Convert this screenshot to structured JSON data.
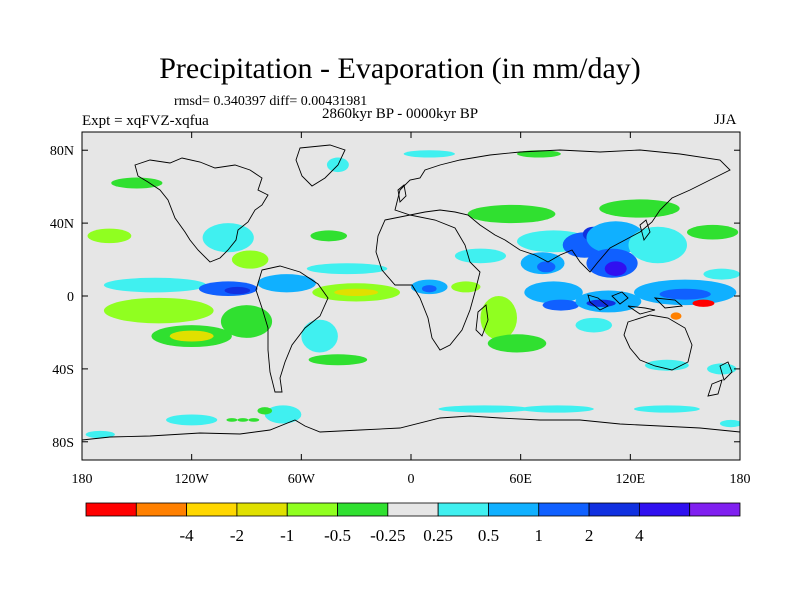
{
  "chart_data": {
    "type": "heatmap",
    "title": "Precipitation - Evaporation (in mm/day)",
    "stats_line": "rmsd= 0.340397 diff= 0.00431981",
    "time_label": "2860kyr BP - 0000kyr BP",
    "experiment_label": "Expt = xqFVZ-xqfua",
    "season": "JJA",
    "x_ticks": [
      {
        "lon": -180,
        "label": "180"
      },
      {
        "lon": -120,
        "label": "120W"
      },
      {
        "lon": -60,
        "label": "60W"
      },
      {
        "lon": 0,
        "label": "0"
      },
      {
        "lon": 60,
        "label": "60E"
      },
      {
        "lon": 120,
        "label": "120E"
      },
      {
        "lon": 180,
        "label": "180"
      }
    ],
    "y_ticks": [
      {
        "lat": 80,
        "label": "80N"
      },
      {
        "lat": 40,
        "label": "40N"
      },
      {
        "lat": 0,
        "label": "0"
      },
      {
        "lat": -40,
        "label": "40S"
      },
      {
        "lat": -80,
        "label": "80S"
      }
    ],
    "lon_range": [
      -180,
      180
    ],
    "lat_range": [
      -90,
      90
    ],
    "colorbar": {
      "colors": [
        "#ff0000",
        "#ff8000",
        "#ffd700",
        "#e0e000",
        "#90ff20",
        "#30e030",
        "#e6e6e6",
        "#40f0f0",
        "#10b0ff",
        "#1060ff",
        "#1030e0",
        "#3010f0",
        "#8020f0"
      ],
      "labels": [
        "-4",
        "-2",
        "-1",
        "-0.5",
        "-0.25",
        "0.25",
        "0.5",
        "1",
        "2",
        "4"
      ]
    },
    "anomaly_regions": [
      {
        "lon": -140,
        "lat": 6,
        "rx": 28,
        "ry": 4,
        "level": 1
      },
      {
        "lon": -100,
        "lat": 4,
        "rx": 16,
        "ry": 4,
        "level": 3
      },
      {
        "lon": -95,
        "lat": 3,
        "rx": 7,
        "ry": 2,
        "level": 4
      },
      {
        "lon": -138,
        "lat": -8,
        "rx": 30,
        "ry": 7,
        "level": -2
      },
      {
        "lon": -120,
        "lat": -22,
        "rx": 22,
        "ry": 6,
        "level": -1
      },
      {
        "lon": -120,
        "lat": -22,
        "rx": 12,
        "ry": 3,
        "level": -3
      },
      {
        "lon": -90,
        "lat": -14,
        "rx": 14,
        "ry": 9,
        "level": -1
      },
      {
        "lon": -165,
        "lat": 33,
        "rx": 12,
        "ry": 4,
        "level": -2
      },
      {
        "lon": -100,
        "lat": 32,
        "rx": 14,
        "ry": 8,
        "level": 1
      },
      {
        "lon": -88,
        "lat": 20,
        "rx": 10,
        "ry": 5,
        "level": -2
      },
      {
        "lon": -68,
        "lat": 7,
        "rx": 16,
        "ry": 5,
        "level": 2
      },
      {
        "lon": -30,
        "lat": 2,
        "rx": 24,
        "ry": 5,
        "level": -2
      },
      {
        "lon": -30,
        "lat": 2,
        "rx": 12,
        "ry": 2,
        "level": -3
      },
      {
        "lon": -35,
        "lat": 15,
        "rx": 22,
        "ry": 3,
        "level": 1
      },
      {
        "lon": -45,
        "lat": 33,
        "rx": 10,
        "ry": 3,
        "level": -1
      },
      {
        "lon": -50,
        "lat": -22,
        "rx": 10,
        "ry": 9,
        "level": 1
      },
      {
        "lon": -40,
        "lat": -35,
        "rx": 16,
        "ry": 3,
        "level": -1
      },
      {
        "lon": 10,
        "lat": 5,
        "rx": 10,
        "ry": 4,
        "level": 2
      },
      {
        "lon": 10,
        "lat": 4,
        "rx": 4,
        "ry": 2,
        "level": 3
      },
      {
        "lon": 30,
        "lat": 5,
        "rx": 8,
        "ry": 3,
        "level": -2
      },
      {
        "lon": 48,
        "lat": -12,
        "rx": 10,
        "ry": 12,
        "level": -2
      },
      {
        "lon": 58,
        "lat": -26,
        "rx": 16,
        "ry": 5,
        "level": -1
      },
      {
        "lon": 38,
        "lat": 22,
        "rx": 14,
        "ry": 4,
        "level": 1
      },
      {
        "lon": 55,
        "lat": 45,
        "rx": 24,
        "ry": 5,
        "level": -1
      },
      {
        "lon": 78,
        "lat": 30,
        "rx": 20,
        "ry": 6,
        "level": 1
      },
      {
        "lon": 72,
        "lat": 18,
        "rx": 12,
        "ry": 6,
        "level": 2
      },
      {
        "lon": 74,
        "lat": 16,
        "rx": 5,
        "ry": 3,
        "level": 3
      },
      {
        "lon": 78,
        "lat": 2,
        "rx": 16,
        "ry": 6,
        "level": 2
      },
      {
        "lon": 82,
        "lat": -5,
        "rx": 10,
        "ry": 3,
        "level": 3
      },
      {
        "lon": 95,
        "lat": 28,
        "rx": 12,
        "ry": 7,
        "level": 3
      },
      {
        "lon": 100,
        "lat": 34,
        "rx": 6,
        "ry": 4,
        "level": 4
      },
      {
        "lon": 112,
        "lat": 32,
        "rx": 16,
        "ry": 9,
        "level": 2
      },
      {
        "lon": 110,
        "lat": 18,
        "rx": 14,
        "ry": 8,
        "level": 3
      },
      {
        "lon": 112,
        "lat": 15,
        "rx": 6,
        "ry": 4,
        "level": 5
      },
      {
        "lon": 108,
        "lat": -3,
        "rx": 18,
        "ry": 6,
        "level": 2
      },
      {
        "lon": 104,
        "lat": -4,
        "rx": 8,
        "ry": 2,
        "level": 4
      },
      {
        "lon": 100,
        "lat": -16,
        "rx": 10,
        "ry": 4,
        "level": 1
      },
      {
        "lon": 135,
        "lat": 28,
        "rx": 16,
        "ry": 10,
        "level": 1
      },
      {
        "lon": 125,
        "lat": 48,
        "rx": 22,
        "ry": 5,
        "level": -1
      },
      {
        "lon": 165,
        "lat": 35,
        "rx": 14,
        "ry": 4,
        "level": -1
      },
      {
        "lon": 150,
        "lat": 2,
        "rx": 28,
        "ry": 7,
        "level": 2
      },
      {
        "lon": 150,
        "lat": 1,
        "rx": 14,
        "ry": 3,
        "level": 3
      },
      {
        "lon": 160,
        "lat": -4,
        "rx": 6,
        "ry": 2,
        "level": -6
      },
      {
        "lon": 145,
        "lat": -11,
        "rx": 3,
        "ry": 2,
        "level": -5
      },
      {
        "lon": 170,
        "lat": 12,
        "rx": 10,
        "ry": 3,
        "level": 1
      },
      {
        "lon": 140,
        "lat": -38,
        "rx": 12,
        "ry": 3,
        "level": 1
      },
      {
        "lon": 170,
        "lat": -40,
        "rx": 8,
        "ry": 3,
        "level": 1
      },
      {
        "lon": -150,
        "lat": 62,
        "rx": 14,
        "ry": 3,
        "level": -1
      },
      {
        "lon": -40,
        "lat": 72,
        "rx": 6,
        "ry": 4,
        "level": 1
      },
      {
        "lon": 10,
        "lat": 78,
        "rx": 14,
        "ry": 2,
        "level": 1
      },
      {
        "lon": 70,
        "lat": 78,
        "rx": 12,
        "ry": 2,
        "level": -1
      },
      {
        "lon": -70,
        "lat": -65,
        "rx": 10,
        "ry": 5,
        "level": 1
      },
      {
        "lon": -80,
        "lat": -63,
        "rx": 4,
        "ry": 2,
        "level": -1
      },
      {
        "lon": -120,
        "lat": -68,
        "rx": 14,
        "ry": 3,
        "level": 1
      },
      {
        "lon": -170,
        "lat": -76,
        "rx": 8,
        "ry": 2,
        "level": 1
      },
      {
        "lon": 40,
        "lat": -62,
        "rx": 25,
        "ry": 2,
        "level": 1
      },
      {
        "lon": 80,
        "lat": -62,
        "rx": 20,
        "ry": 2,
        "level": 1
      },
      {
        "lon": 140,
        "lat": -62,
        "rx": 18,
        "ry": 2,
        "level": 1
      },
      {
        "lon": 175,
        "lat": -70,
        "rx": 6,
        "ry": 2,
        "level": 1
      },
      {
        "lon": -98,
        "lat": -68,
        "rx": 3,
        "ry": 1,
        "level": -1
      },
      {
        "lon": -92,
        "lat": -68,
        "rx": 3,
        "ry": 1,
        "level": -1
      },
      {
        "lon": -86,
        "lat": -68,
        "rx": 3,
        "ry": 1,
        "level": -1
      }
    ]
  }
}
